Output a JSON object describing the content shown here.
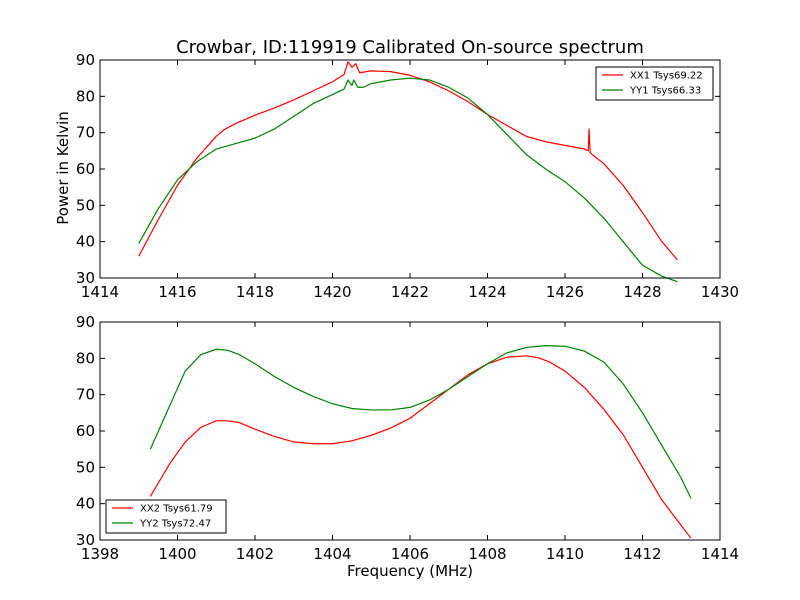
{
  "figure": {
    "title": "Crowbar, ID:119919 Calibrated On-source spectrum",
    "ylabel": "Power in Kelvin",
    "xlabel": "Frequency (MHz)"
  },
  "colors": {
    "red": "#ff0000",
    "green": "#008000"
  },
  "chart_data": [
    {
      "type": "line",
      "xlim": [
        1414,
        1430
      ],
      "ylim": [
        30,
        90
      ],
      "xticks": [
        1414,
        1416,
        1418,
        1420,
        1422,
        1424,
        1426,
        1428,
        1430
      ],
      "yticks": [
        30,
        40,
        50,
        60,
        70,
        80,
        90
      ],
      "legend_placement": "top-right",
      "grid": false,
      "series": [
        {
          "name": "XX1 Tsys69.22",
          "color": "red",
          "x": [
            1415.0,
            1415.5,
            1416.0,
            1416.5,
            1417.0,
            1417.2,
            1417.5,
            1418.0,
            1418.5,
            1419.0,
            1419.5,
            1420.0,
            1420.3,
            1420.4,
            1420.5,
            1420.6,
            1420.7,
            1421.0,
            1421.5,
            1422.0,
            1422.5,
            1423.0,
            1423.5,
            1424.0,
            1424.5,
            1425.0,
            1425.5,
            1426.0,
            1426.5,
            1426.6,
            1426.62,
            1426.65,
            1426.7,
            1427.0,
            1427.5,
            1428.0,
            1428.5,
            1428.9
          ],
          "y": [
            36,
            46,
            55.5,
            63,
            69,
            70.8,
            72.5,
            74.8,
            76.8,
            79,
            81.5,
            84,
            86,
            89.5,
            88,
            89,
            86.5,
            87,
            86.8,
            85.8,
            84,
            81.5,
            78.5,
            75,
            72,
            69,
            67.5,
            66.5,
            65.5,
            65,
            71,
            64.5,
            64,
            61.5,
            55.5,
            48,
            40,
            35
          ]
        },
        {
          "name": "YY1 Tsys66.33",
          "color": "green",
          "x": [
            1415.0,
            1415.5,
            1416.0,
            1416.5,
            1417.0,
            1417.5,
            1418.0,
            1418.5,
            1419.0,
            1419.5,
            1420.0,
            1420.3,
            1420.4,
            1420.5,
            1420.55,
            1420.65,
            1420.8,
            1421.0,
            1421.5,
            1422.0,
            1422.5,
            1423.0,
            1423.5,
            1424.0,
            1424.5,
            1425.0,
            1425.5,
            1426.0,
            1426.5,
            1427.0,
            1427.5,
            1428.0,
            1428.5,
            1428.9
          ],
          "y": [
            39.5,
            49,
            57,
            62,
            65.5,
            67,
            68.5,
            71,
            74.5,
            78,
            80.5,
            82,
            84.5,
            83,
            84.5,
            82.5,
            82.5,
            83.5,
            84.5,
            85,
            84.5,
            82.5,
            79.5,
            75,
            69.5,
            64,
            60,
            56.5,
            52,
            46.5,
            40,
            33.5,
            30.5,
            29
          ]
        }
      ]
    },
    {
      "type": "line",
      "xlim": [
        1398,
        1414
      ],
      "ylim": [
        30,
        90
      ],
      "xticks": [
        1398,
        1400,
        1402,
        1404,
        1406,
        1408,
        1410,
        1412,
        1414
      ],
      "yticks": [
        30,
        40,
        50,
        60,
        70,
        80,
        90
      ],
      "legend_placement": "bottom-left",
      "grid": false,
      "series": [
        {
          "name": "XX2 Tsys61.79",
          "color": "red",
          "x": [
            1399.3,
            1399.8,
            1400.2,
            1400.6,
            1401.0,
            1401.3,
            1401.6,
            1402.0,
            1402.5,
            1403.0,
            1403.5,
            1404.0,
            1404.5,
            1405.0,
            1405.5,
            1406.0,
            1406.5,
            1407.0,
            1407.5,
            1408.0,
            1408.5,
            1409.0,
            1409.3,
            1409.6,
            1410.0,
            1410.5,
            1411.0,
            1411.5,
            1412.0,
            1412.5,
            1413.0,
            1413.25
          ],
          "y": [
            42,
            51,
            57,
            61,
            62.8,
            62.8,
            62.3,
            60.5,
            58.5,
            57,
            56.5,
            56.5,
            57.3,
            58.8,
            60.8,
            63.5,
            67.5,
            71.5,
            75.5,
            78.5,
            80.3,
            80.7,
            80.2,
            79,
            76.5,
            72,
            66,
            59,
            50,
            41,
            34,
            30.5
          ]
        },
        {
          "name": "YY2 Tsys72.47",
          "color": "green",
          "x": [
            1399.3,
            1399.8,
            1400.2,
            1400.6,
            1401.0,
            1401.3,
            1401.6,
            1402.0,
            1402.5,
            1403.0,
            1403.5,
            1404.0,
            1404.5,
            1405.0,
            1405.5,
            1406.0,
            1406.5,
            1407.0,
            1407.5,
            1408.0,
            1408.5,
            1409.0,
            1409.5,
            1410.0,
            1410.5,
            1411.0,
            1411.5,
            1412.0,
            1412.5,
            1413.0,
            1413.25
          ],
          "y": [
            55,
            67,
            76.5,
            81,
            82.5,
            82.2,
            81,
            78.5,
            75,
            72,
            69.5,
            67.5,
            66.2,
            65.8,
            65.8,
            66.5,
            68.5,
            71.5,
            75,
            78.5,
            81.5,
            83,
            83.5,
            83.3,
            82,
            79,
            73,
            65,
            56,
            47,
            41.5
          ]
        }
      ]
    }
  ]
}
